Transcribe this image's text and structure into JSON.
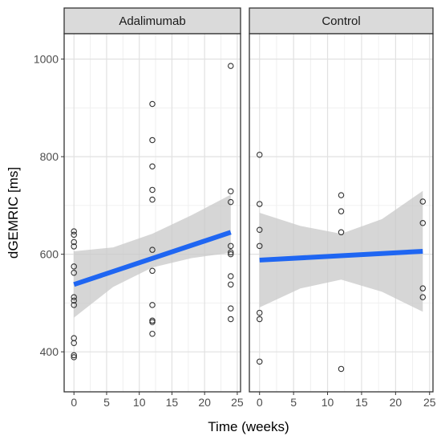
{
  "chart_data": {
    "type": "scatter",
    "xlabel": "Time (weeks)",
    "ylabel": "dGEMRIC [ms]",
    "xlim": [
      -1.5,
      25.5
    ],
    "ylim": [
      318,
      1052
    ],
    "x_ticks": [
      0,
      5,
      10,
      15,
      20,
      25
    ],
    "y_ticks": [
      400,
      600,
      800,
      1000
    ],
    "grid": true,
    "colors": {
      "point_stroke": "#333333",
      "trend_line": "#1f66f2",
      "ribbon": "#c8c8c8",
      "strip_fill": "#dadada",
      "grid_major": "#e1e1e1",
      "grid_minor": "#f0f0f0",
      "panel_border": "#333333"
    },
    "panels": [
      {
        "strip": "Adalimumab",
        "points": [
          {
            "x": 0,
            "y": 647
          },
          {
            "x": 0,
            "y": 640
          },
          {
            "x": 0,
            "y": 625
          },
          {
            "x": 0,
            "y": 616
          },
          {
            "x": 0,
            "y": 575
          },
          {
            "x": 0,
            "y": 562
          },
          {
            "x": 0,
            "y": 512
          },
          {
            "x": 0,
            "y": 505
          },
          {
            "x": 0,
            "y": 496
          },
          {
            "x": 0,
            "y": 428
          },
          {
            "x": 0,
            "y": 418
          },
          {
            "x": 0,
            "y": 393
          },
          {
            "x": 0,
            "y": 389
          },
          {
            "x": 12,
            "y": 908
          },
          {
            "x": 12,
            "y": 834
          },
          {
            "x": 12,
            "y": 780
          },
          {
            "x": 12,
            "y": 732
          },
          {
            "x": 12,
            "y": 712
          },
          {
            "x": 12,
            "y": 609
          },
          {
            "x": 12,
            "y": 566
          },
          {
            "x": 12,
            "y": 496
          },
          {
            "x": 12,
            "y": 464
          },
          {
            "x": 12,
            "y": 461
          },
          {
            "x": 12,
            "y": 437
          },
          {
            "x": 24,
            "y": 986
          },
          {
            "x": 24,
            "y": 729
          },
          {
            "x": 24,
            "y": 707
          },
          {
            "x": 24,
            "y": 617
          },
          {
            "x": 24,
            "y": 604
          },
          {
            "x": 24,
            "y": 600
          },
          {
            "x": 24,
            "y": 555
          },
          {
            "x": 24,
            "y": 538
          },
          {
            "x": 24,
            "y": 489
          },
          {
            "x": 24,
            "y": 467
          }
        ],
        "fit": {
          "x": [
            0,
            24
          ],
          "y": [
            538,
            645
          ]
        },
        "ribbon": {
          "x": [
            0,
            6,
            12,
            18,
            24
          ],
          "lower": [
            470,
            533,
            573,
            592,
            603
          ],
          "upper": [
            606,
            614,
            642,
            680,
            722
          ]
        }
      },
      {
        "strip": "Control",
        "points": [
          {
            "x": 0,
            "y": 804
          },
          {
            "x": 0,
            "y": 703
          },
          {
            "x": 0,
            "y": 650
          },
          {
            "x": 0,
            "y": 617
          },
          {
            "x": 0,
            "y": 480
          },
          {
            "x": 0,
            "y": 467
          },
          {
            "x": 0,
            "y": 380
          },
          {
            "x": 12,
            "y": 721
          },
          {
            "x": 12,
            "y": 688
          },
          {
            "x": 12,
            "y": 645
          },
          {
            "x": 12,
            "y": 365
          },
          {
            "x": 24,
            "y": 708
          },
          {
            "x": 24,
            "y": 664
          },
          {
            "x": 24,
            "y": 530
          },
          {
            "x": 24,
            "y": 512
          }
        ],
        "fit": {
          "x": [
            0,
            24
          ],
          "y": [
            588,
            606
          ]
        },
        "ribbon": {
          "x": [
            0,
            6,
            12,
            18,
            24
          ],
          "lower": [
            491,
            530,
            548,
            523,
            482
          ],
          "upper": [
            685,
            658,
            642,
            672,
            730
          ]
        }
      }
    ]
  }
}
